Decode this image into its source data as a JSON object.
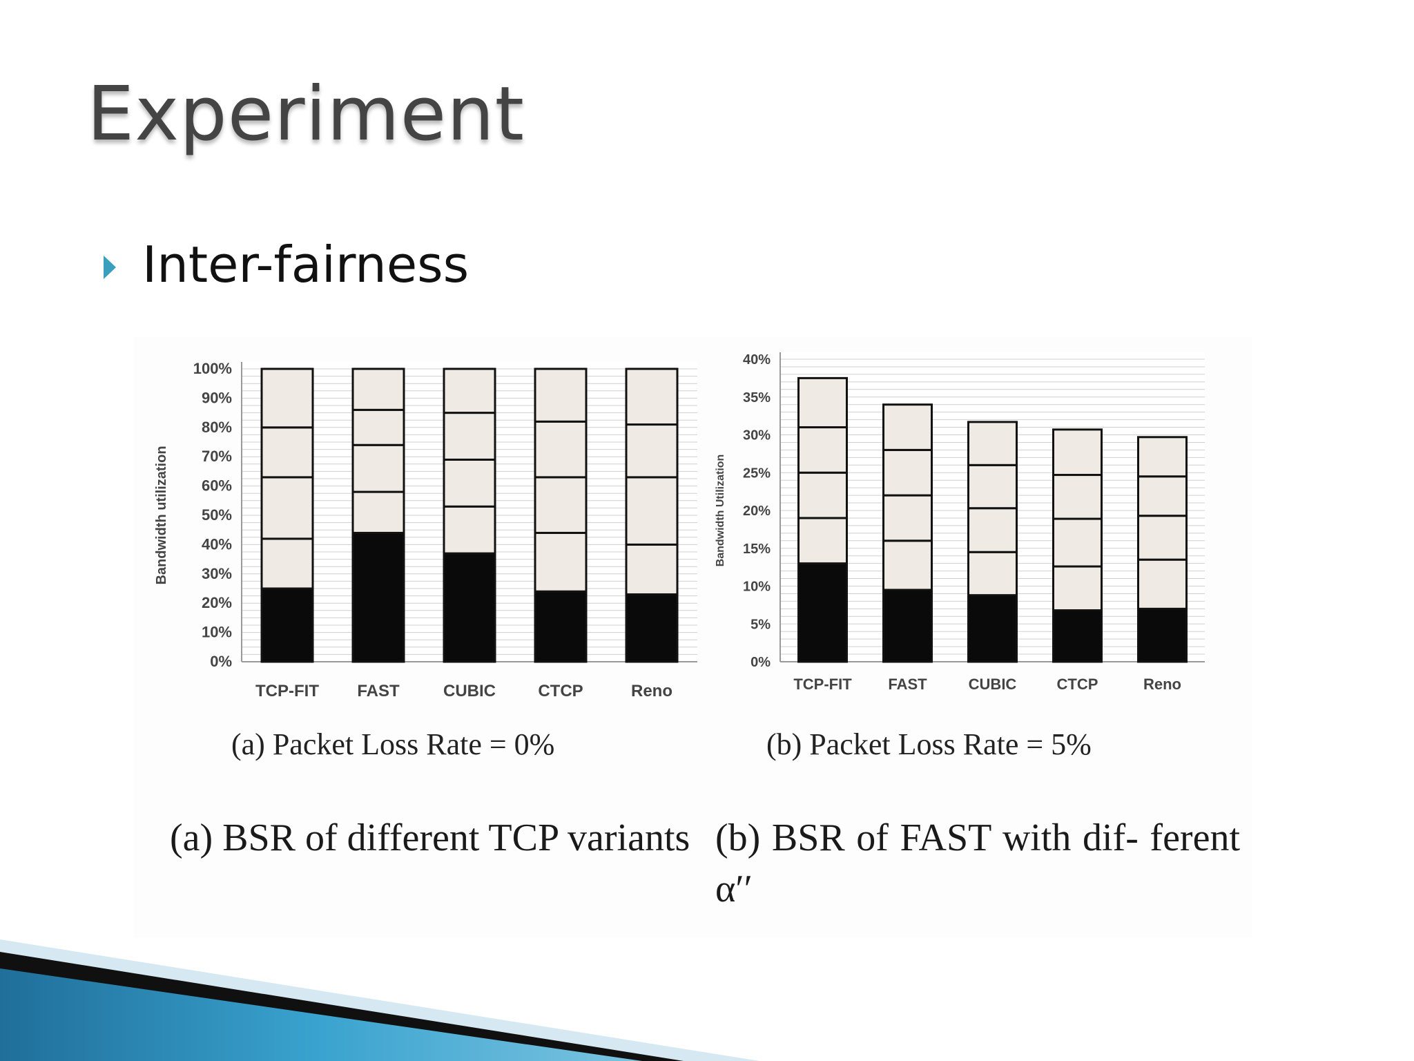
{
  "slide": {
    "title": "Experiment",
    "bullet": "Inter-fairness"
  },
  "colors": {
    "title": "#444444",
    "bullet_arrow": "#3a9fbd",
    "bar_dark": "#0a0a0a",
    "bar_light": "#efebe4",
    "grid": "#cfcfcf",
    "footer_blue": "#2e8cb5"
  },
  "icons": {
    "bullet": "triangle-right-icon"
  },
  "chart_data": [
    {
      "type": "bar",
      "stacked": true,
      "categories": [
        "TCP-FIT",
        "FAST",
        "CUBIC",
        "CTCP",
        "Reno"
      ],
      "segments": [
        [
          25,
          17,
          21,
          17,
          20
        ],
        [
          44,
          14,
          16,
          12,
          14
        ],
        [
          37,
          16,
          16,
          16,
          15
        ],
        [
          24,
          20,
          19,
          19,
          18
        ],
        [
          23,
          17,
          23,
          18,
          19
        ]
      ],
      "ylabel": "Bandwidth utilization",
      "yticks": [
        "0%",
        "10%",
        "20%",
        "30%",
        "40%",
        "50%",
        "60%",
        "70%",
        "80%",
        "90%",
        "100%"
      ],
      "ylim": [
        0,
        100
      ],
      "grid": true,
      "caption": "(a) Packet Loss Rate = 0%"
    },
    {
      "type": "bar",
      "stacked": true,
      "categories": [
        "TCP-FIT",
        "FAST",
        "CUBIC",
        "CTCP",
        "Reno"
      ],
      "segments": [
        [
          13,
          6,
          6,
          6,
          6.5
        ],
        [
          9.5,
          6.5,
          6,
          6,
          6
        ],
        [
          8.8,
          5.7,
          5.8,
          5.7,
          5.7
        ],
        [
          6.8,
          5.8,
          6.3,
          5.8,
          6
        ],
        [
          7,
          6.5,
          5.8,
          5.2,
          5.2
        ]
      ],
      "ylabel": "Bandwidth Utilization",
      "yticks": [
        "0%",
        "5%",
        "10%",
        "15%",
        "20%",
        "25%",
        "30%",
        "35%",
        "40%"
      ],
      "ylim": [
        0,
        40
      ],
      "grid": true,
      "caption": "(b) Packet Loss Rate = 5%"
    }
  ],
  "figure_captions": {
    "a": "(a)  BSR  of  different  TCP variants",
    "b": "(b) BSR of FAST with dif- ferent α′′"
  }
}
